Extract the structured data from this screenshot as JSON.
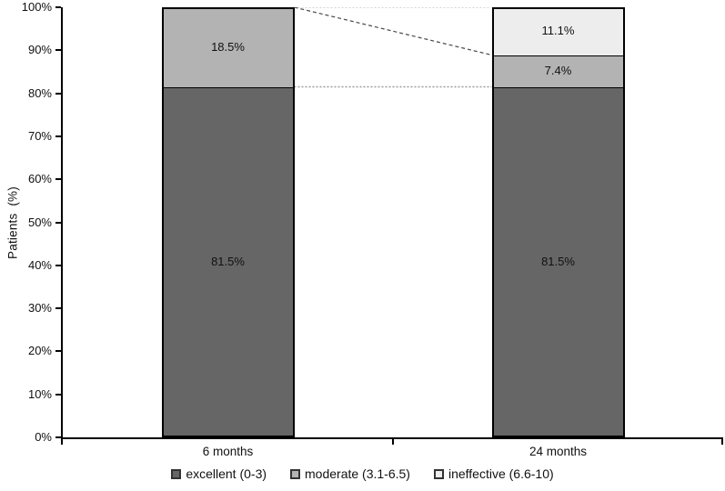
{
  "chart_data": {
    "type": "bar",
    "subtype": "100-percent-stacked-column",
    "title": "",
    "xlabel": "",
    "ylabel": "Patients  (%)",
    "categories": [
      "6 months",
      "24 months"
    ],
    "series": [
      {
        "name": "excellent (0-3)",
        "color": "#666666",
        "values": [
          81.5,
          81.5
        ]
      },
      {
        "name": "moderate (3.1-6.5)",
        "color": "#b3b3b3",
        "values": [
          18.5,
          7.4
        ]
      },
      {
        "name": "ineffective (6.6-10)",
        "color": "#ededed",
        "values": [
          0,
          11.1
        ]
      }
    ],
    "data_labels": [
      [
        "81.5%",
        "18.5%",
        ""
      ],
      [
        "81.5%",
        "7.4%",
        "11.1%"
      ]
    ],
    "y_ticks": [
      "0%",
      "10%",
      "20%",
      "30%",
      "40%",
      "50%",
      "60%",
      "70%",
      "80%",
      "90%",
      "100%"
    ],
    "ylim": [
      0,
      100
    ],
    "grid": false,
    "legend_position": "bottom",
    "axis_color": "#000000",
    "bar_border_color": "#000000",
    "connectors": [
      {
        "from_pct": 100,
        "to_pct": 100,
        "color": "#c6c6c6",
        "dash": "2,2",
        "width": 1.5
      },
      {
        "from_pct": 81.5,
        "to_pct": 81.5,
        "color": "#9b9b9b",
        "dash": "2,2",
        "width": 1.5
      },
      {
        "from_pct": 100,
        "to_pct": 88.9,
        "color": "#474747",
        "dash": "4,3",
        "width": 1.2
      }
    ]
  }
}
